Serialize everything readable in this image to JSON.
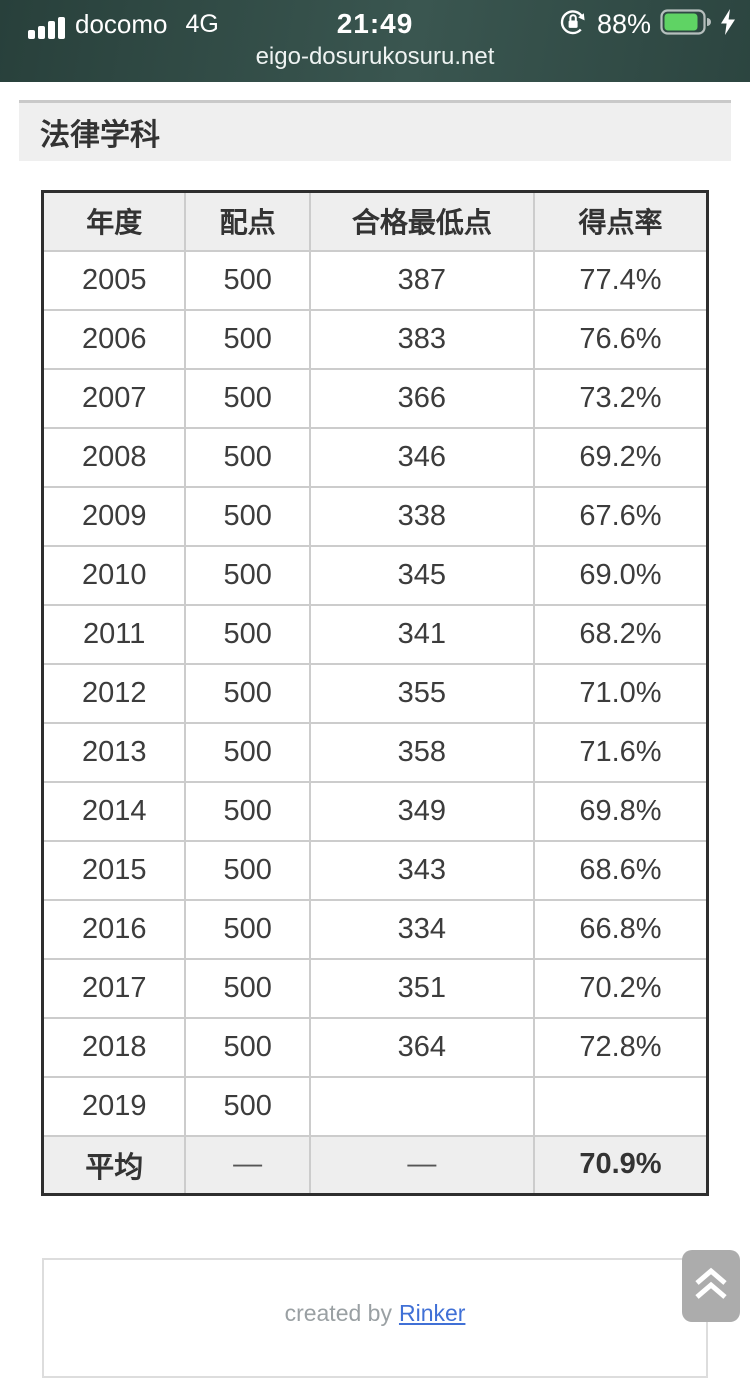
{
  "status_bar": {
    "carrier": "docomo",
    "network": "4G",
    "time": "21:49",
    "battery_percent": "88%",
    "colors": {
      "bar_bg_dark": "#28403b",
      "bar_bg_light": "#3a5650",
      "battery_fill": "#5fd364"
    }
  },
  "browser": {
    "url": "eigo-dosurukosuru.net"
  },
  "page": {
    "heading": "法律学科"
  },
  "table": {
    "headers": [
      "年度",
      "配点",
      "合格最低点",
      "得点率"
    ],
    "rows": [
      [
        "2005",
        "500",
        "387",
        "77.4%"
      ],
      [
        "2006",
        "500",
        "383",
        "76.6%"
      ],
      [
        "2007",
        "500",
        "366",
        "73.2%"
      ],
      [
        "2008",
        "500",
        "346",
        "69.2%"
      ],
      [
        "2009",
        "500",
        "338",
        "67.6%"
      ],
      [
        "2010",
        "500",
        "345",
        "69.0%"
      ],
      [
        "2011",
        "500",
        "341",
        "68.2%"
      ],
      [
        "2012",
        "500",
        "355",
        "71.0%"
      ],
      [
        "2013",
        "500",
        "358",
        "71.6%"
      ],
      [
        "2014",
        "500",
        "349",
        "69.8%"
      ],
      [
        "2015",
        "500",
        "343",
        "68.6%"
      ],
      [
        "2016",
        "500",
        "334",
        "66.8%"
      ],
      [
        "2017",
        "500",
        "351",
        "70.2%"
      ],
      [
        "2018",
        "500",
        "364",
        "72.8%"
      ],
      [
        "2019",
        "500",
        "",
        ""
      ]
    ],
    "average_row": [
      "平均",
      "—",
      "—",
      "70.9%"
    ]
  },
  "footer": {
    "credit_text": "created by",
    "credit_link": "Rinker",
    "link_color": "#4070d6"
  }
}
